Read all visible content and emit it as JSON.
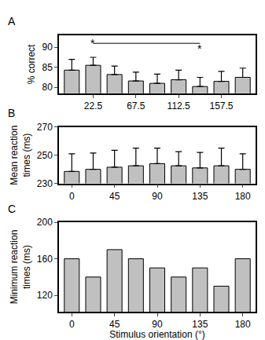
{
  "chart_data": [
    {
      "type": "bar",
      "panel": "A",
      "y_label": "% correct",
      "categories": [
        null,
        "22.5",
        null,
        "67.5",
        null,
        "112.5",
        null,
        "157.5",
        null
      ],
      "values": [
        84.3,
        85.5,
        83.2,
        81.6,
        81.0,
        81.9,
        80.2,
        81.5,
        82.5
      ],
      "errors": [
        2.7,
        2.0,
        2.1,
        2.2,
        2.3,
        2.4,
        2.3,
        2.5,
        2.3
      ],
      "color": "#c0c0c0",
      "ylim": [
        78.5,
        93
      ],
      "yticks": [
        80,
        85,
        90
      ],
      "annotations": [
        {
          "text": "*",
          "x": 1,
          "y": 91
        },
        {
          "text": "*",
          "x": 6,
          "y": 89.6
        }
      ],
      "bracket": {
        "x": [
          1,
          6
        ],
        "y": 91
      }
    },
    {
      "type": "bar",
      "panel": "B",
      "y_label": "Mean reaction\ntimes (ms)",
      "categories": [
        "0",
        null,
        "45",
        null,
        "90",
        null,
        "135",
        null,
        "180"
      ],
      "values": [
        238.5,
        240,
        241.5,
        242.5,
        244,
        242.5,
        241,
        242.5,
        240
      ],
      "errors": [
        12.5,
        11.5,
        12,
        12.5,
        11,
        10,
        11,
        12.5,
        11
      ],
      "color": "#c0c0c0",
      "ylim": [
        230,
        270
      ],
      "yticks": [
        230,
        250,
        270
      ]
    },
    {
      "type": "bar",
      "panel": "C",
      "y_label": "Minimum reaction\ntimes (ms)",
      "x_label": "Stimulus orientation (°)",
      "categories": [
        "0",
        null,
        "45",
        null,
        "90",
        null,
        "135",
        null,
        "180"
      ],
      "values": [
        160,
        140,
        170,
        160,
        150,
        140,
        150,
        130,
        160
      ],
      "color": "#c0c0c0",
      "ylim": [
        102,
        200
      ],
      "yticks": [
        120,
        160,
        200
      ]
    }
  ]
}
